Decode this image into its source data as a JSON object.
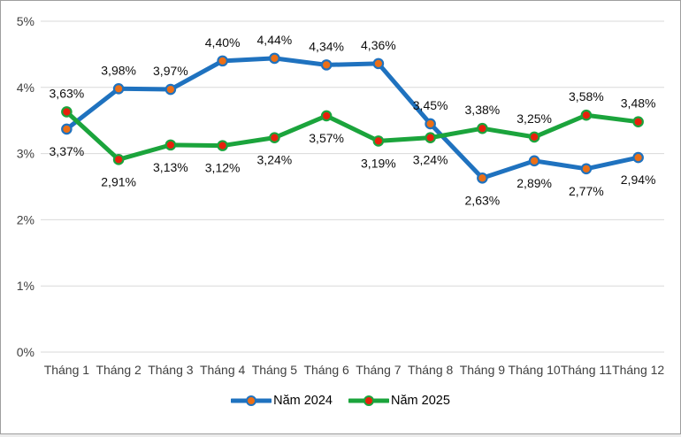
{
  "chart_data": {
    "type": "line",
    "categories": [
      "Tháng 1",
      "Tháng 2",
      "Tháng 3",
      "Tháng 4",
      "Tháng 5",
      "Tháng 6",
      "Tháng 7",
      "Tháng 8",
      "Tháng 9",
      "Tháng 10",
      "Tháng 11",
      "Tháng 12"
    ],
    "series": [
      {
        "name": "Năm 2024",
        "line_color": "#1F72BF",
        "marker_fill": "#EC6F16",
        "values": [
          3.37,
          3.98,
          3.97,
          4.4,
          4.44,
          4.34,
          4.36,
          3.45,
          2.63,
          2.89,
          2.77,
          2.94
        ],
        "labels": [
          "3,37%",
          "3,98%",
          "3,97%",
          "4,40%",
          "4,44%",
          "4,34%",
          "4,36%",
          "3,45%",
          "2,63%",
          "2,89%",
          "2,77%",
          "2,94%"
        ],
        "label_positions": [
          "below",
          "above",
          "above",
          "above",
          "above",
          "above",
          "above",
          "above",
          "below",
          "below",
          "below",
          "below"
        ]
      },
      {
        "name": "Năm 2025",
        "line_color": "#1BA43C",
        "marker_fill": "#E8200C",
        "values": [
          3.63,
          2.91,
          3.13,
          3.12,
          3.24,
          3.57,
          3.19,
          3.24,
          3.38,
          3.25,
          3.58,
          3.48
        ],
        "labels": [
          "3,63%",
          "2,91%",
          "3,13%",
          "3,12%",
          "3,24%",
          "3,57%",
          "3,19%",
          "3,24%",
          "3,38%",
          "3,25%",
          "3,58%",
          "3,48%"
        ],
        "label_positions": [
          "above",
          "below",
          "below",
          "below",
          "below",
          "below",
          "below",
          "below",
          "above",
          "above",
          "above",
          "above"
        ]
      }
    ],
    "y_axis": {
      "tick_labels": [
        "0%",
        "1%",
        "2%",
        "3%",
        "4%",
        "5%"
      ],
      "min": 0,
      "max": 5
    },
    "title": "",
    "xlabel": "",
    "ylabel": "",
    "grid": true,
    "grid_color": "#d9d9d9",
    "axis_text_color": "#404040",
    "data_label_color": "#0d0d0d",
    "legend_position": "bottom"
  }
}
